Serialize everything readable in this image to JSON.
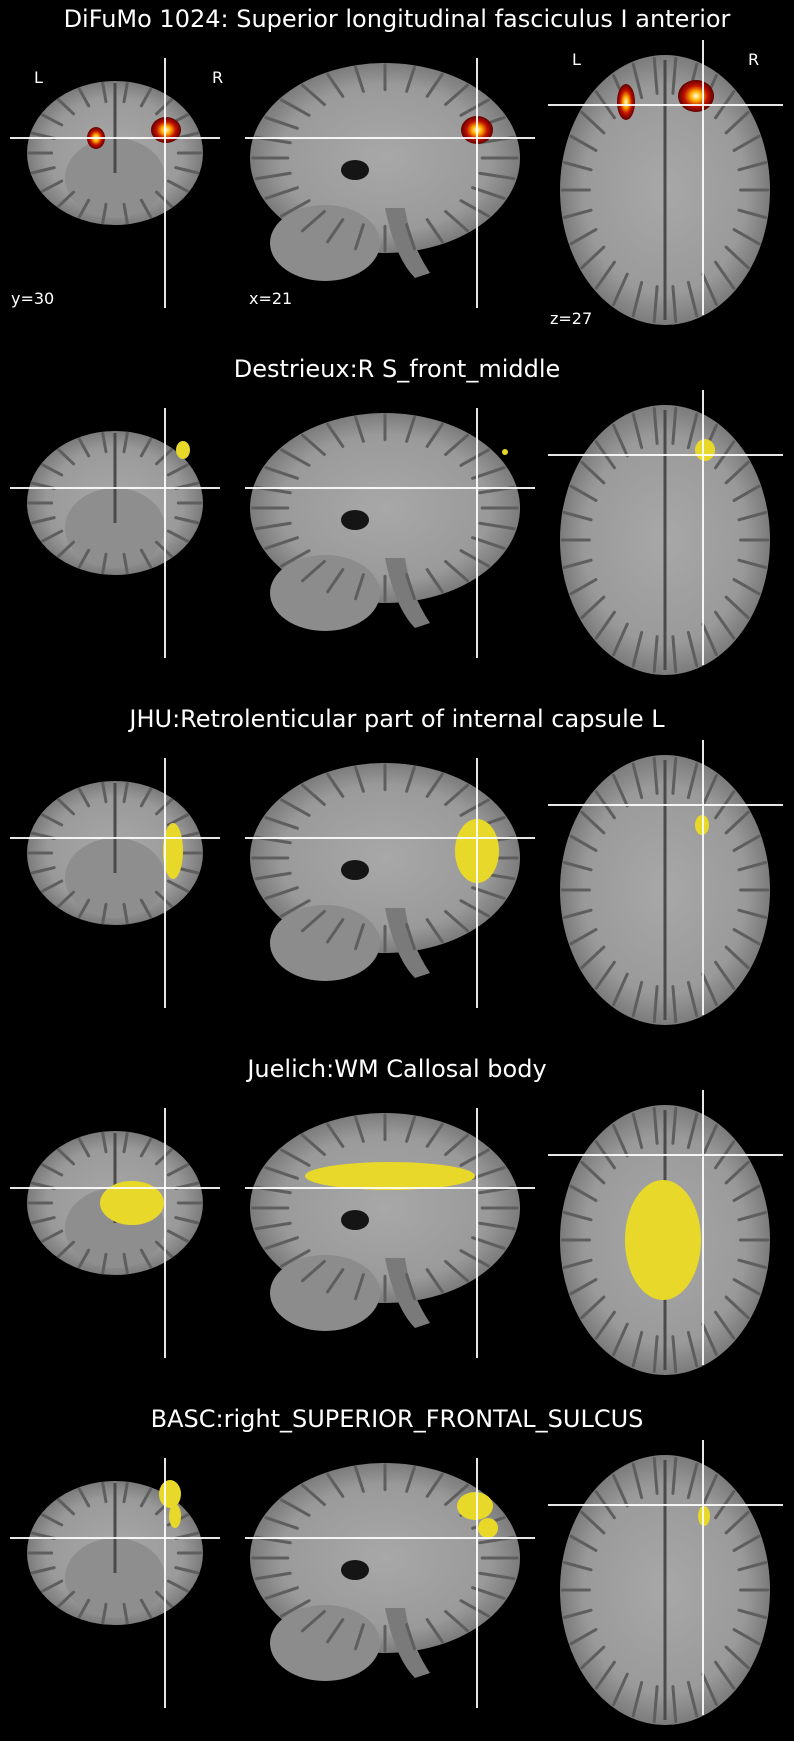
{
  "colors": {
    "background": "#000000",
    "brain_light": "#b4b4b4",
    "brain_mid": "#8a8a8a",
    "brain_dark": "#5a5a5a",
    "crosshair": "#ffffff",
    "atlas_yellow": "#e8d82a",
    "heat_core": "#ffffe0",
    "heat_mid": "#ffb000",
    "heat_outer": "#c01000",
    "heat_edge": "#600000"
  },
  "panels": [
    {
      "title": "DiFuMo 1024: Superior longitudinal fasciculus I anterior",
      "overlay": "heat",
      "labels": {
        "left": "L",
        "right": "R"
      },
      "coords": {
        "coronal": "y=30",
        "sagittal": "x=21",
        "axial": "z=27"
      }
    },
    {
      "title": "Destrieux:R S_front_middle",
      "overlay": "front_middle"
    },
    {
      "title": "JHU:Retrolenticular part of internal capsule L",
      "overlay": "capsule"
    },
    {
      "title": "Juelich:WM Callosal body",
      "overlay": "callosal"
    },
    {
      "title": "BASC:right_SUPERIOR_FRONTAL_SULCUS",
      "overlay": "sfs"
    }
  ]
}
